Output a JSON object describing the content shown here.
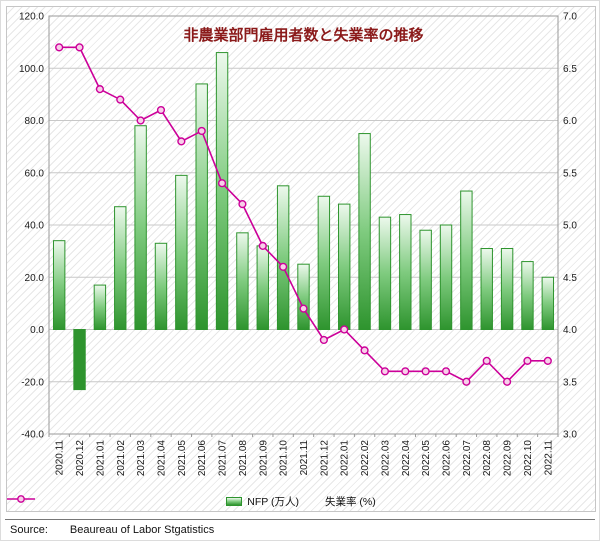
{
  "chart_data": {
    "type": "combo_bar_line",
    "title": "非農業部門雇用者数と失業率の推移",
    "xlabel": "",
    "ylabel_left": "",
    "ylabel_right": "",
    "grid": true,
    "legend_position": "bottom",
    "categories": [
      "2020.11",
      "2020.12",
      "2021.01",
      "2021.02",
      "2021.03",
      "2021.04",
      "2021.05",
      "2021.06",
      "2021.07",
      "2021.08",
      "2021.09",
      "2021.10",
      "2021.11",
      "2021.12",
      "2022.01",
      "2022.02",
      "2022.03",
      "2022.04",
      "2022.05",
      "2022.06",
      "2022.07",
      "2022.08",
      "2022.09",
      "2022.10",
      "2022.11"
    ],
    "series": [
      {
        "name": "NFP (万人)",
        "type": "bar",
        "axis": "left",
        "values": [
          34,
          -23,
          17,
          47,
          78,
          33,
          59,
          94,
          106,
          37,
          32,
          55,
          25,
          51,
          48,
          75,
          43,
          44,
          38,
          40,
          53,
          31,
          31,
          26,
          20
        ]
      },
      {
        "name": "失業率 (%)",
        "type": "line",
        "axis": "right",
        "values": [
          6.7,
          6.7,
          6.3,
          6.2,
          6.0,
          6.1,
          5.8,
          5.9,
          5.4,
          5.2,
          4.8,
          4.6,
          4.2,
          3.9,
          4.0,
          3.8,
          3.6,
          3.6,
          3.6,
          3.6,
          3.5,
          3.7,
          3.5,
          3.7,
          3.7
        ]
      }
    ],
    "y_left": {
      "min": -40,
      "max": 120,
      "ticks": [
        "120.0",
        "100.0",
        "80.0",
        "60.0",
        "40.0",
        "20.0",
        "0.0",
        "-20.0",
        "-40.0"
      ]
    },
    "y_right": {
      "min": 3,
      "max": 7,
      "ticks": [
        "7.0",
        "6.5",
        "6.0",
        "5.5",
        "5.0",
        "4.5",
        "4.0",
        "3.5",
        "3.0"
      ]
    }
  },
  "source": {
    "label": "Source:",
    "text": "Beaureau of Labor Stgatistics"
  },
  "colors": {
    "title": "#8B1A1A",
    "bar_light": "#EDF9ED",
    "bar_mid": "#7FCB7F",
    "bar_dark": "#2E942E",
    "line": "#CC0099",
    "marker_fill": "#F7CFE9",
    "grid": "#C8C8C8",
    "axis_text": "#1a1a1a",
    "plot_border": "#9a9a9a"
  }
}
